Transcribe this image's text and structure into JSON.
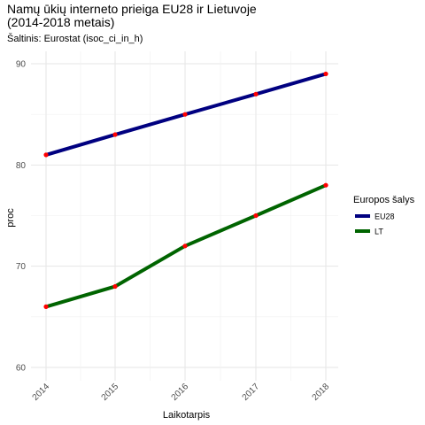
{
  "chart_data": {
    "type": "line",
    "title": "Namų ūkių interneto prieiga EU28 ir Lietuvoje\n(2014-2018 metais)",
    "subtitle": "Šaltinis: Eurostat (isoc_ci_in_h)",
    "xlabel": "Laikotarpis",
    "ylabel": "proc",
    "x": [
      "2014",
      "2015",
      "2016",
      "2017",
      "2018"
    ],
    "ylim": [
      59,
      93
    ],
    "yticks": [
      "60",
      "70",
      "80",
      "90"
    ],
    "grid": true,
    "legend": {
      "title": "Europos šalys",
      "placement": "right"
    },
    "series": [
      {
        "name": "EU28",
        "values": [
          81,
          83,
          85,
          87,
          89
        ],
        "color": "#000080"
      },
      {
        "name": "LT",
        "values": [
          66,
          68,
          72,
          75,
          78
        ],
        "color": "#006400"
      }
    ],
    "point_color": "#ff0000"
  }
}
